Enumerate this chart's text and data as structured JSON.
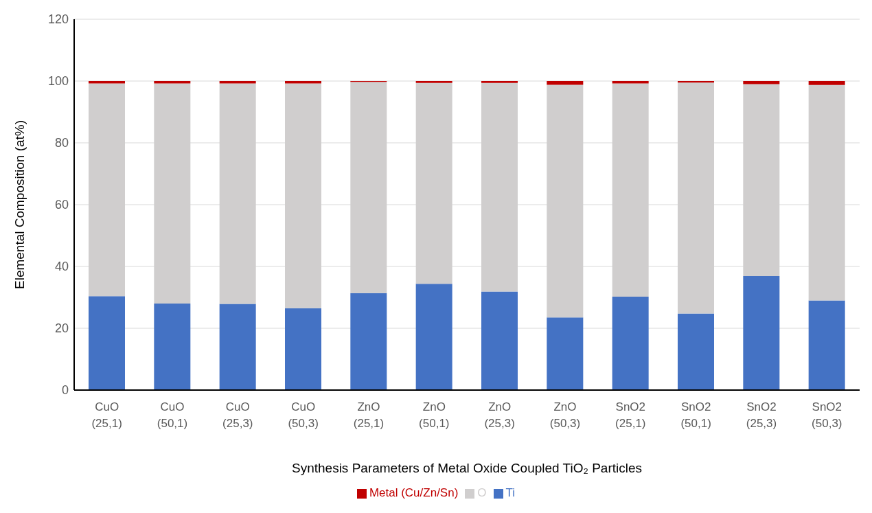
{
  "chart_data": {
    "type": "bar",
    "stacked": true,
    "xlabel": "Synthesis Parameters of Metal Oxide Coupled TiO₂ Particles",
    "ylabel": "Elemental Composition (at%)",
    "categories": [
      "CuO\n(25,1)",
      "CuO\n(50,1)",
      "CuO\n(25,3)",
      "CuO\n(50,3)",
      "ZnO\n(25,1)",
      "ZnO\n(50,1)",
      "ZnO\n(25,3)",
      "ZnO\n(50,3)",
      "SnO2\n(25,1)",
      "SnO2\n(50,1)",
      "SnO2\n(25,3)",
      "SnO2\n(50,3)"
    ],
    "series": [
      {
        "name": "Ti",
        "color": "#4472c4",
        "values": [
          30.4,
          28.0,
          27.9,
          26.5,
          31.4,
          34.4,
          31.9,
          23.5,
          30.2,
          24.8,
          36.9,
          29.0
        ]
      },
      {
        "name": "O",
        "color": "#d0cece",
        "values": [
          68.8,
          71.2,
          71.3,
          72.7,
          68.3,
          65.0,
          67.5,
          75.3,
          69.0,
          74.7,
          62.1,
          69.7
        ]
      },
      {
        "name": "Metal (Cu/Zn/Sn)",
        "color": "#c00000",
        "values": [
          0.8,
          0.8,
          0.8,
          0.8,
          0.3,
          0.6,
          0.6,
          1.2,
          0.8,
          0.5,
          1.0,
          1.3
        ]
      }
    ],
    "ylim": [
      0,
      120
    ],
    "yticks": [
      0,
      20,
      40,
      60,
      80,
      100,
      120
    ],
    "grid": "y",
    "legend": "bottom"
  }
}
